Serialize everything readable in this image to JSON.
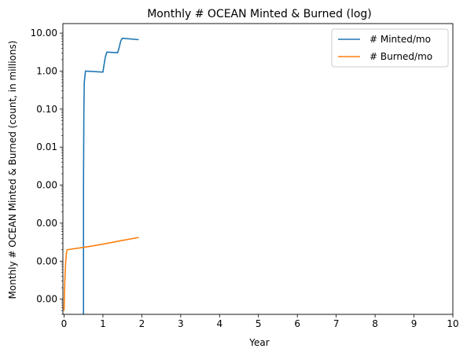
{
  "chart_data": {
    "type": "line",
    "title": "Monthly # OCEAN Minted & Burned (log)",
    "xlabel": "Year",
    "ylabel": "Monthly # OCEAN Minted & Burned (count, in millions)",
    "xlim": [
      -0.03,
      10
    ],
    "ylim_log10": [
      -6.4,
      1.25
    ],
    "y_scale": "log",
    "grid": false,
    "legend_position": "top-right",
    "x_ticks": [
      0,
      1,
      2,
      3,
      4,
      5,
      6,
      7,
      8,
      9,
      10
    ],
    "x_tick_labels": [
      "0",
      "1",
      "2",
      "3",
      "4",
      "5",
      "6",
      "7",
      "8",
      "9",
      "10"
    ],
    "y_ticks_log10": [
      1,
      0,
      -1,
      -2,
      -3,
      -4,
      -5,
      -6
    ],
    "y_tick_labels": [
      "10.00",
      "1.00",
      "0.10",
      "0.01",
      "0.00",
      "0.00",
      "0.00",
      "0.00"
    ],
    "series": [
      {
        "name": "# Minted/mo",
        "color": "#1f77b4",
        "x": [
          0.5,
          0.5,
          0.505,
          0.51,
          0.52,
          0.55,
          1.0,
          1.02,
          1.06,
          1.1,
          1.38,
          1.42,
          1.46,
          1.5,
          1.92
        ],
        "y": [
          1e-07,
          0.001,
          0.01,
          0.1,
          0.5,
          1.0,
          0.94,
          1.3,
          2.3,
          3.15,
          3.05,
          4.3,
          6.3,
          7.3,
          6.7
        ]
      },
      {
        "name": "# Burned/mo",
        "color": "#ff7f0e",
        "x": [
          0.0,
          0.02,
          0.04,
          0.06,
          0.08,
          0.5,
          1.0,
          1.5,
          1.92
        ],
        "y": [
          5e-07,
          3e-06,
          9e-06,
          1.6e-05,
          2e-05,
          2.3e-05,
          2.8e-05,
          3.5e-05,
          4.2e-05
        ]
      }
    ]
  }
}
